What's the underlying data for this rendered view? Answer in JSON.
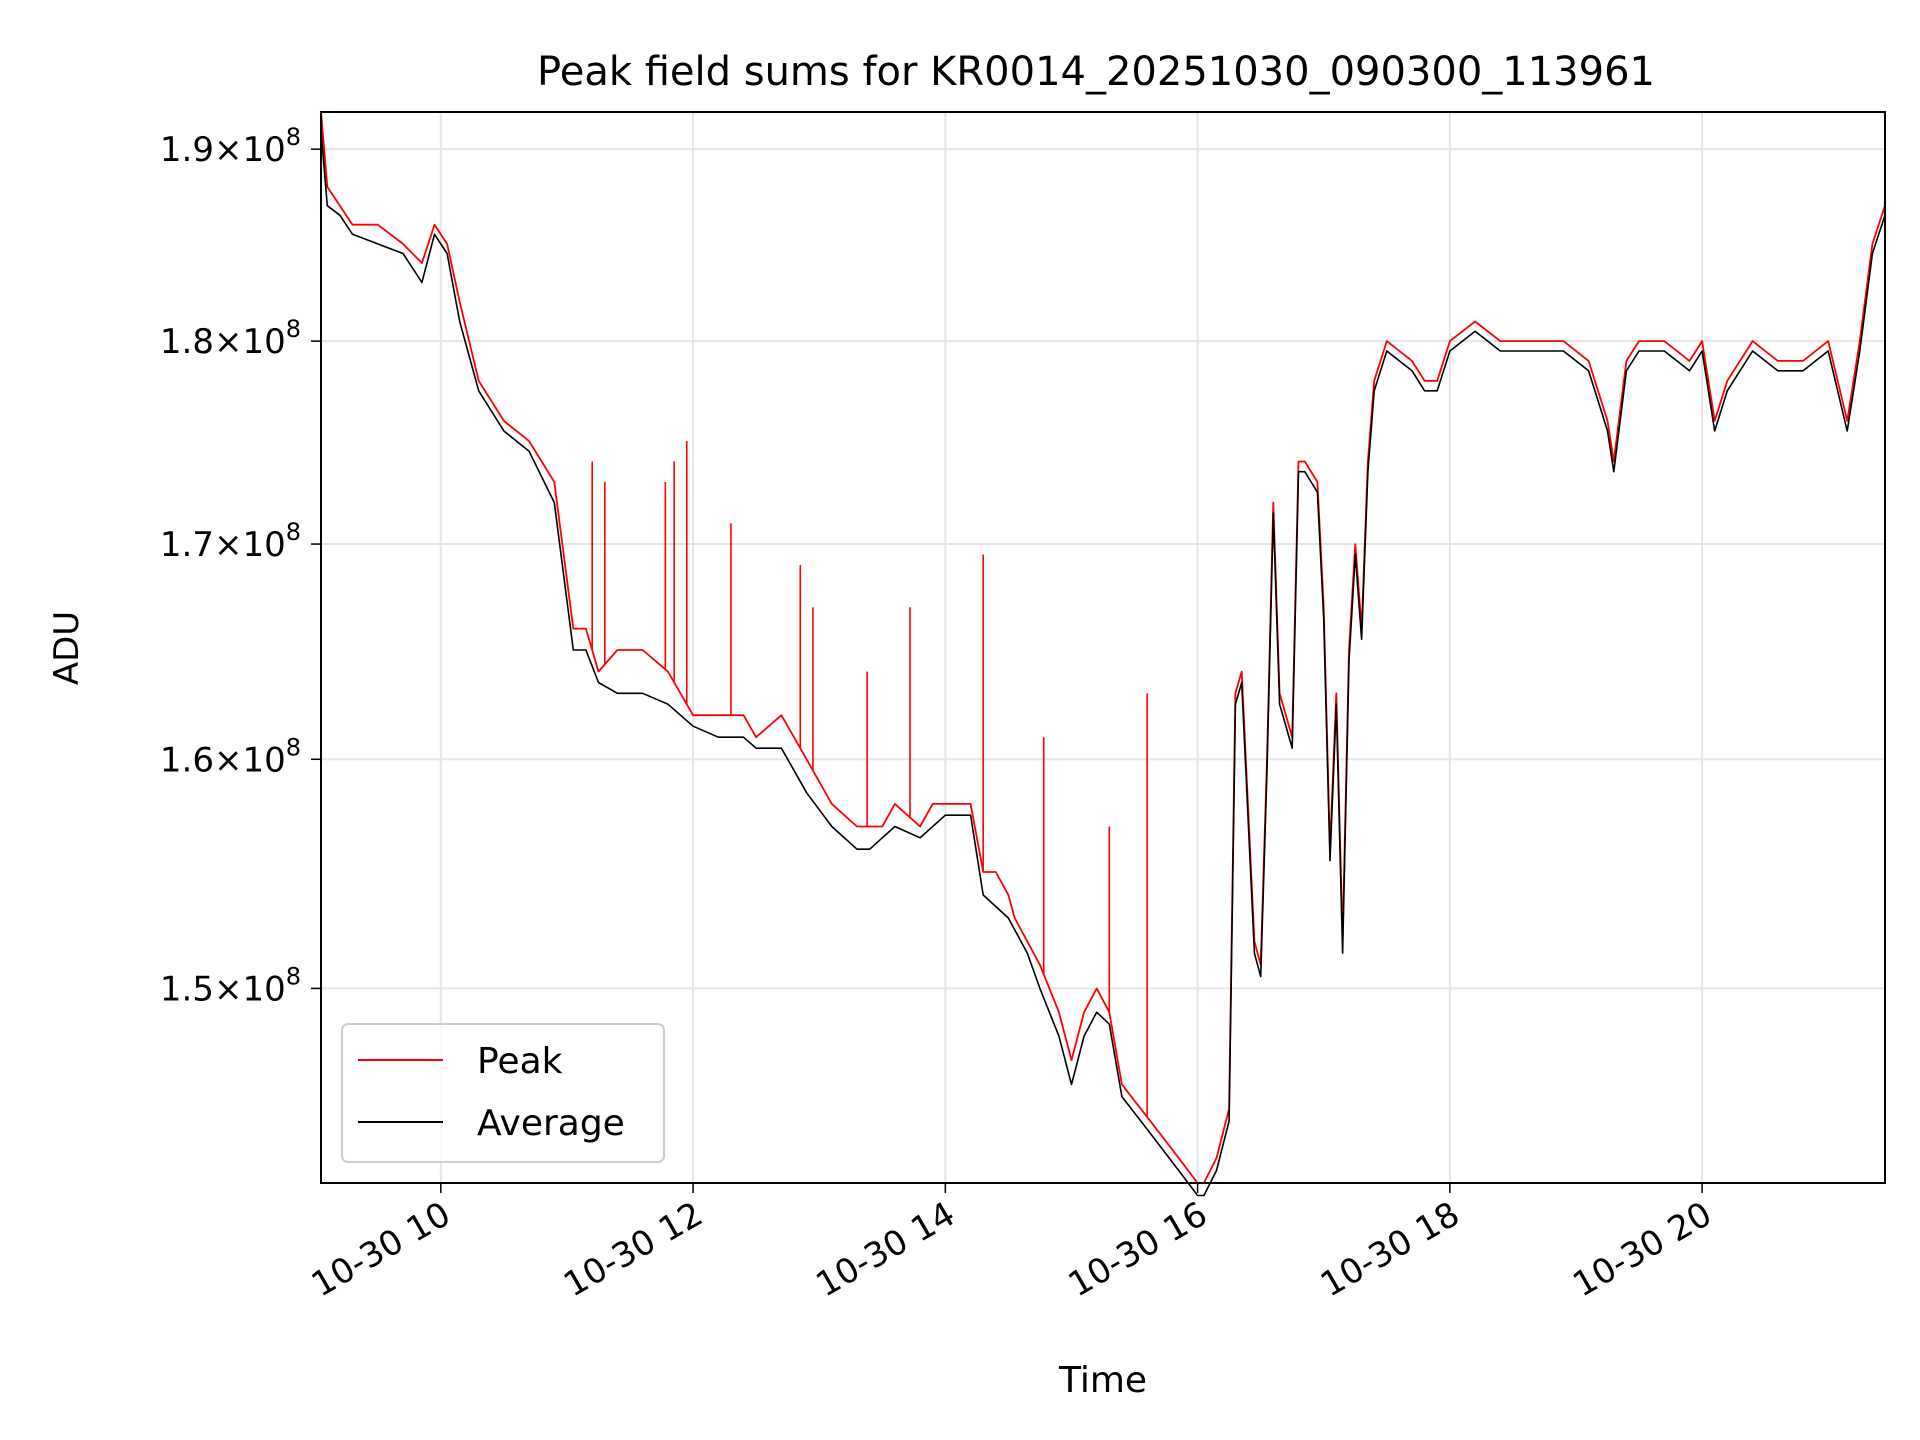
{
  "chart_data": {
    "type": "line",
    "title": "Peak field sums for KR0014_20251030_090300_113961",
    "xlabel": "Time",
    "ylabel": "ADU",
    "yscale": "log",
    "xlim": [
      9.05,
      21.45
    ],
    "ylim": [
      142000000,
      192000000
    ],
    "x_unit": "hours on 2025-10-30",
    "xticks": [
      {
        "value": 10,
        "label": "10-30 10"
      },
      {
        "value": 12,
        "label": "10-30 12"
      },
      {
        "value": 14,
        "label": "10-30 14"
      },
      {
        "value": 16,
        "label": "10-30 16"
      },
      {
        "value": 18,
        "label": "10-30 18"
      },
      {
        "value": 20,
        "label": "10-30 20"
      }
    ],
    "yticks": [
      {
        "value": 150000000,
        "mantissa": "1.5",
        "base": "10",
        "exp": "8"
      },
      {
        "value": 160000000,
        "mantissa": "1.6",
        "base": "10",
        "exp": "8"
      },
      {
        "value": 170000000,
        "mantissa": "1.7",
        "base": "10",
        "exp": "8"
      },
      {
        "value": 180000000,
        "mantissa": "1.8",
        "base": "10",
        "exp": "8"
      },
      {
        "value": 190000000,
        "mantissa": "1.9",
        "base": "10",
        "exp": "8"
      }
    ],
    "grid": true,
    "legend": {
      "position": "lower-left"
    },
    "series": [
      {
        "name": "Peak",
        "color": "#ff0000",
        "x": [
          9.05,
          9.1,
          9.2,
          9.3,
          9.5,
          9.7,
          9.85,
          9.95,
          10.05,
          10.15,
          10.3,
          10.5,
          10.7,
          10.9,
          11.05,
          11.15,
          11.25,
          11.4,
          11.6,
          11.8,
          12.0,
          12.2,
          12.4,
          12.5,
          12.7,
          12.9,
          13.1,
          13.3,
          13.4,
          13.5,
          13.6,
          13.8,
          13.9,
          14.0,
          14.2,
          14.3,
          14.4,
          14.5,
          14.55,
          14.65,
          14.75,
          14.9,
          15.0,
          15.1,
          15.2,
          15.3,
          15.4,
          15.55,
          15.7,
          15.85,
          16.0,
          16.05,
          16.15,
          16.25,
          16.3,
          16.35,
          16.45,
          16.5,
          16.55,
          16.6,
          16.65,
          16.75,
          16.8,
          16.85,
          16.95,
          17.0,
          17.05,
          17.1,
          17.15,
          17.2,
          17.25,
          17.3,
          17.35,
          17.4,
          17.5,
          17.7,
          17.8,
          17.9,
          18.0,
          18.2,
          18.4,
          18.7,
          18.9,
          19.1,
          19.2,
          19.25,
          19.3,
          19.4,
          19.5,
          19.7,
          19.9,
          20.0,
          20.1,
          20.2,
          20.4,
          20.6,
          20.8,
          21.0,
          21.15,
          21.25,
          21.35,
          21.45
        ],
        "y": [
          192000000,
          188000000,
          187000000,
          186000000,
          186000000,
          185000000,
          184000000,
          186000000,
          185000000,
          182000000,
          178000000,
          176000000,
          175000000,
          173000000,
          166000000,
          166000000,
          164000000,
          165000000,
          165000000,
          164000000,
          162000000,
          162000000,
          162000000,
          161000000,
          162000000,
          160000000,
          158000000,
          157000000,
          157000000,
          157000000,
          158000000,
          157000000,
          158000000,
          158000000,
          158000000,
          155000000,
          155000000,
          154000000,
          153000000,
          152000000,
          151000000,
          149000000,
          147000000,
          149000000,
          150000000,
          149000000,
          146000000,
          145000000,
          144000000,
          143000000,
          142000000,
          142000000,
          143000000,
          145000000,
          163000000,
          164000000,
          152000000,
          151000000,
          160000000,
          172000000,
          163000000,
          161000000,
          174000000,
          174000000,
          173000000,
          167000000,
          156000000,
          163000000,
          152000000,
          165000000,
          170000000,
          166000000,
          174000000,
          178000000,
          180000000,
          179000000,
          178000000,
          178000000,
          180000000,
          181000000,
          180000000,
          180000000,
          180000000,
          179000000,
          177000000,
          176000000,
          174000000,
          179000000,
          180000000,
          180000000,
          179000000,
          180000000,
          176000000,
          178000000,
          180000000,
          179000000,
          179000000,
          180000000,
          176000000,
          180000000,
          185000000,
          187000000
        ],
        "spikes": [
          {
            "x": 11.2,
            "y": 174000000
          },
          {
            "x": 11.3,
            "y": 173000000
          },
          {
            "x": 11.78,
            "y": 173000000
          },
          {
            "x": 11.85,
            "y": 174000000
          },
          {
            "x": 11.95,
            "y": 175000000
          },
          {
            "x": 12.3,
            "y": 171000000
          },
          {
            "x": 12.85,
            "y": 169000000
          },
          {
            "x": 12.95,
            "y": 167000000
          },
          {
            "x": 13.38,
            "y": 164000000
          },
          {
            "x": 13.72,
            "y": 167000000
          },
          {
            "x": 14.3,
            "y": 169500000
          },
          {
            "x": 14.78,
            "y": 161000000
          },
          {
            "x": 15.3,
            "y": 157000000
          },
          {
            "x": 15.6,
            "y": 163000000
          }
        ]
      },
      {
        "name": "Average",
        "color": "#000000",
        "x": [
          9.05,
          9.1,
          9.2,
          9.3,
          9.5,
          9.7,
          9.85,
          9.95,
          10.05,
          10.15,
          10.3,
          10.5,
          10.7,
          10.9,
          11.05,
          11.15,
          11.25,
          11.4,
          11.6,
          11.8,
          12.0,
          12.2,
          12.4,
          12.5,
          12.7,
          12.9,
          13.1,
          13.3,
          13.4,
          13.5,
          13.6,
          13.8,
          13.9,
          14.0,
          14.2,
          14.3,
          14.4,
          14.5,
          14.55,
          14.65,
          14.75,
          14.9,
          15.0,
          15.1,
          15.2,
          15.3,
          15.4,
          15.55,
          15.7,
          15.85,
          16.0,
          16.05,
          16.15,
          16.25,
          16.3,
          16.35,
          16.45,
          16.5,
          16.55,
          16.6,
          16.65,
          16.75,
          16.8,
          16.85,
          16.95,
          17.0,
          17.05,
          17.1,
          17.15,
          17.2,
          17.25,
          17.3,
          17.35,
          17.4,
          17.5,
          17.7,
          17.8,
          17.9,
          18.0,
          18.2,
          18.4,
          18.7,
          18.9,
          19.1,
          19.2,
          19.25,
          19.3,
          19.4,
          19.5,
          19.7,
          19.9,
          20.0,
          20.1,
          20.2,
          20.4,
          20.6,
          20.8,
          21.0,
          21.15,
          21.25,
          21.35,
          21.45
        ],
        "y": [
          191000000,
          187000000,
          186500000,
          185500000,
          185000000,
          184500000,
          183000000,
          185500000,
          184500000,
          181000000,
          177500000,
          175500000,
          174500000,
          172000000,
          165000000,
          165000000,
          163500000,
          163000000,
          163000000,
          162500000,
          161500000,
          161000000,
          161000000,
          160500000,
          160500000,
          158500000,
          157000000,
          156000000,
          156000000,
          156500000,
          157000000,
          156500000,
          157000000,
          157500000,
          157500000,
          154000000,
          153500000,
          153000000,
          152500000,
          151500000,
          150000000,
          148000000,
          146000000,
          148000000,
          149000000,
          148500000,
          145500000,
          144500000,
          143500000,
          142500000,
          141500000,
          141500000,
          142500000,
          144500000,
          162500000,
          163500000,
          151500000,
          150500000,
          159500000,
          171500000,
          162500000,
          160500000,
          173500000,
          173500000,
          172500000,
          166500000,
          155500000,
          162500000,
          151500000,
          164500000,
          169500000,
          165500000,
          173500000,
          177500000,
          179500000,
          178500000,
          177500000,
          177500000,
          179500000,
          180500000,
          179500000,
          179500000,
          179500000,
          178500000,
          176500000,
          175500000,
          173500000,
          178500000,
          179500000,
          179500000,
          178500000,
          179500000,
          175500000,
          177500000,
          179500000,
          178500000,
          178500000,
          179500000,
          175500000,
          179500000,
          184500000,
          186500000
        ]
      }
    ]
  }
}
